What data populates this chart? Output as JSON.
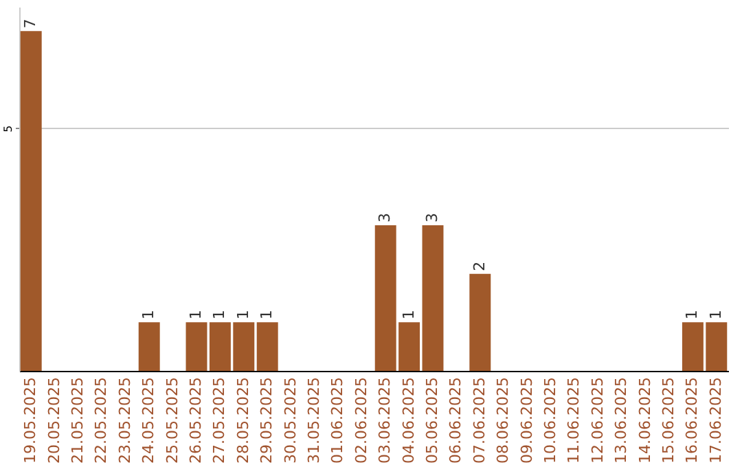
{
  "chart_data": {
    "type": "bar",
    "categories": [
      "19.05.2025",
      "20.05.2025",
      "21.05.2025",
      "22.05.2025",
      "23.05.2025",
      "24.05.2025",
      "25.05.2025",
      "26.05.2025",
      "27.05.2025",
      "28.05.2025",
      "29.05.2025",
      "30.05.2025",
      "31.05.2025",
      "01.06.2025",
      "02.06.2025",
      "03.06.2025",
      "04.06.2025",
      "05.06.2025",
      "06.06.2025",
      "07.06.2025",
      "08.06.2025",
      "09.06.2025",
      "10.06.2025",
      "11.06.2025",
      "12.06.2025",
      "13.06.2025",
      "14.06.2025",
      "15.06.2025",
      "16.06.2025",
      "17.06.2025"
    ],
    "values": [
      7,
      0,
      0,
      0,
      0,
      1,
      0,
      1,
      1,
      1,
      1,
      0,
      0,
      0,
      0,
      3,
      1,
      3,
      0,
      2,
      0,
      0,
      0,
      0,
      0,
      0,
      0,
      0,
      1,
      1
    ],
    "value_labels": [
      "7",
      null,
      null,
      null,
      null,
      "1",
      null,
      "1",
      "1",
      "1",
      "1",
      null,
      null,
      null,
      null,
      "3",
      "1",
      "3",
      null,
      "2",
      null,
      null,
      null,
      null,
      null,
      null,
      null,
      null,
      "1",
      "1"
    ],
    "color": "#a0592a",
    "ylim": [
      0,
      7.5
    ],
    "yticks": [
      5
    ],
    "grid": "y"
  }
}
